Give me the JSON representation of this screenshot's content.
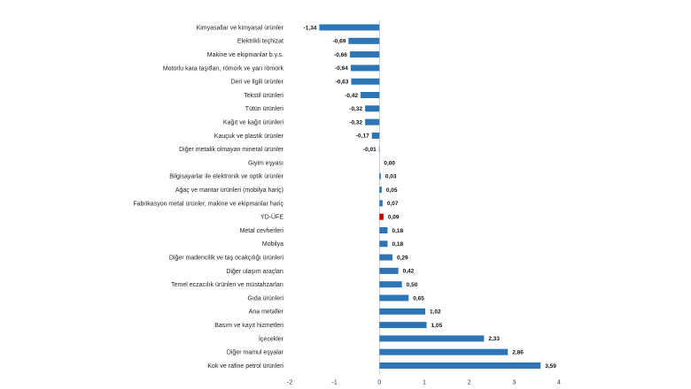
{
  "chart_data": {
    "type": "bar",
    "orientation": "horizontal",
    "categories": [
      "Kimyasallar ve kimyasal ürünler",
      "Elektrikli teçhizat",
      "Makine ve ekipmanlar b.y.s.",
      "Motorlu kara taşıtları, römork ve yarı römork",
      "Deri ve ilgili ürünler",
      "Tekstil ürünleri",
      "Tütün ürünleri",
      "Kağıt ve kağıt ürünleri",
      "Kauçuk ve plastik ürünler",
      "Diğer metalik olmayan mineral ürünler",
      "Giyim eşyası",
      "Bilgisayarlar ile elektronik ve optik ürünler",
      "Ağaç ve mantar ürünleri (mobilya hariç)",
      "Fabrikasyon metal ürünler, makine ve ekipmanlar hariç",
      "YD-ÜFE",
      "Metal cevherleri",
      "Mobilya",
      "Diğer madencilik ve taş ocakçılığı ürünleri",
      "Diğer ulaşım araçları",
      "Temel eczacılık ürünleri ve müstahzarları",
      "Gıda ürünleri",
      "Ana metaller",
      "Basım ve kayıt hizmetleri",
      "İçecekler",
      "Diğer mamul eşyalar",
      "Kok ve rafine petrol ürünleri"
    ],
    "values": [
      -1.34,
      -0.69,
      -0.66,
      -0.64,
      -0.63,
      -0.42,
      -0.32,
      -0.32,
      -0.17,
      -0.01,
      0.0,
      0.03,
      0.05,
      0.07,
      0.09,
      0.18,
      0.18,
      0.29,
      0.42,
      0.5,
      0.65,
      1.02,
      1.05,
      2.33,
      2.86,
      3.59
    ],
    "value_labels": [
      "-1,34",
      "-0,69",
      "-0,66",
      "-0,64",
      "-0,63",
      "-0,42",
      "-0,32",
      "-0,32",
      "-0,17",
      "-0,01",
      "0,00",
      "0,03",
      "0,05",
      "0,07",
      "0,09",
      "0,18",
      "0,18",
      "0,29",
      "0,42",
      "0,50",
      "0,65",
      "1,02",
      "1,05",
      "2,33",
      "2,86",
      "3,59"
    ],
    "highlight_category": "YD-ÜFE",
    "xlim": [
      -2,
      4
    ],
    "xticks": [
      -2,
      -1,
      0,
      1,
      2,
      3,
      4
    ],
    "xtick_labels": [
      "-2",
      "-1",
      "0",
      "1",
      "2",
      "3",
      "4"
    ],
    "grid": false,
    "legend": "none",
    "colors": {
      "bar": "#2e75b6",
      "highlight": "#c00000",
      "axis": "#bfbfbf"
    }
  }
}
